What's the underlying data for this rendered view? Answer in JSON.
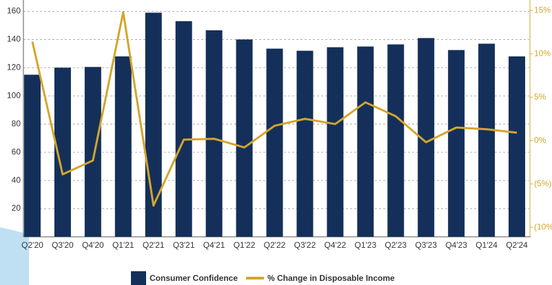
{
  "chart_data": {
    "type": "bar_line",
    "categories": [
      "Q2'20",
      "Q3'20",
      "Q4'20",
      "Q1'21",
      "Q2'21",
      "Q3'21",
      "Q4'21",
      "Q1'22",
      "Q2'22",
      "Q3'22",
      "Q4'22",
      "Q1'23",
      "Q2'23",
      "Q3'23",
      "Q4'23",
      "Q1'24",
      "Q2'24"
    ],
    "series": [
      {
        "name": "Consumer Confidence",
        "type": "bar",
        "color": "#14305a",
        "values": [
          115,
          120,
          120.5,
          128,
          159,
          153,
          146.5,
          140,
          133.5,
          132,
          134.5,
          135,
          136.5,
          141,
          132.5,
          137,
          128
        ]
      },
      {
        "name": "% Change in Disposable Income",
        "type": "line",
        "axis": "y2",
        "color": "#d4a52c",
        "values": [
          11.4,
          -3.9,
          -2.3,
          14.8,
          -7.5,
          0.1,
          0.2,
          -0.8,
          1.7,
          2.5,
          1.9,
          4.4,
          2.8,
          -0.2,
          1.5,
          1.3,
          0.9
        ]
      }
    ],
    "ylim": [
      0,
      168
    ],
    "yticks": [
      20,
      40,
      60,
      80,
      100,
      120,
      140,
      160
    ],
    "y2lim": [
      -11.1,
      16.2
    ],
    "y2ticks": [
      {
        "value": 15,
        "label": "15%"
      },
      {
        "value": 10,
        "label": "10%"
      },
      {
        "value": 5,
        "label": "5%"
      },
      {
        "value": 0,
        "label": "0%"
      },
      {
        "value": -5,
        "label": "(5%)"
      },
      {
        "value": -10,
        "label": "(10%"
      }
    ],
    "grid": true
  }
}
